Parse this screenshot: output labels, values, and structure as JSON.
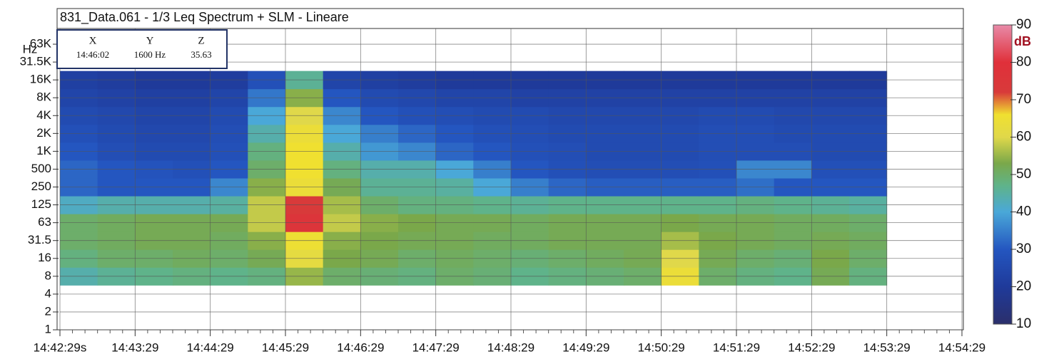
{
  "chart_data": {
    "type": "heatmap",
    "title": "831_Data.061 - 1/3 Leq Spectrum + SLM - Lineare",
    "y_label": "Hz",
    "x_categories": [
      "14:42:29s",
      "14:43:29",
      "14:44:29",
      "14:45:29",
      "14:46:29",
      "14:47:29",
      "14:48:29",
      "14:49:29",
      "14:50:29",
      "14:51:29",
      "14:52:29",
      "14:53:29",
      "14:54:29"
    ],
    "y_categories": [
      "1",
      "2",
      "4",
      "8",
      "16",
      "31.5",
      "63",
      "125",
      "250",
      "500",
      "1K",
      "2K",
      "4K",
      "8K",
      "16K",
      "31.5K",
      "63K"
    ],
    "z": [
      [
        null,
        null,
        null,
        null,
        null,
        null,
        null,
        null,
        null,
        null,
        null,
        null,
        null,
        null,
        null,
        null,
        null,
        null,
        null,
        null,
        null,
        null,
        null,
        null
      ],
      [
        null,
        null,
        null,
        null,
        null,
        null,
        null,
        null,
        null,
        null,
        null,
        null,
        null,
        null,
        null,
        null,
        null,
        null,
        null,
        null,
        null,
        null,
        null,
        null
      ],
      [
        null,
        null,
        null,
        null,
        null,
        null,
        null,
        null,
        null,
        null,
        null,
        null,
        null,
        null,
        null,
        null,
        null,
        null,
        null,
        null,
        null,
        null,
        null,
        null
      ],
      [
        44,
        46,
        47,
        48,
        47,
        48,
        55,
        50,
        49,
        48,
        50,
        49,
        47,
        48,
        49,
        50,
        64,
        50,
        48,
        47,
        52,
        48,
        null,
        null
      ],
      [
        48,
        50,
        50,
        51,
        50,
        52,
        62,
        53,
        52,
        50,
        51,
        50,
        49,
        50,
        51,
        52,
        60,
        52,
        50,
        49,
        53,
        50,
        null,
        null
      ],
      [
        50,
        51,
        52,
        52,
        51,
        54,
        65,
        54,
        53,
        52,
        52,
        51,
        51,
        52,
        52,
        52,
        56,
        53,
        52,
        51,
        52,
        51,
        null,
        null
      ],
      [
        50,
        51,
        52,
        52,
        52,
        58,
        76,
        58,
        54,
        53,
        52,
        52,
        51,
        52,
        52,
        52,
        53,
        52,
        52,
        51,
        51,
        50,
        null,
        null
      ],
      [
        42,
        44,
        44,
        44,
        45,
        58,
        72,
        56,
        50,
        48,
        48,
        47,
        46,
        47,
        47,
        47,
        47,
        47,
        48,
        47,
        46,
        45,
        null,
        null
      ],
      [
        32,
        30,
        30,
        30,
        36,
        54,
        64,
        52,
        46,
        46,
        45,
        40,
        35,
        32,
        31,
        31,
        31,
        31,
        33,
        30,
        30,
        30,
        null,
        null
      ],
      [
        32,
        30,
        29,
        28,
        30,
        50,
        66,
        48,
        44,
        44,
        40,
        35,
        30,
        28,
        27,
        27,
        27,
        28,
        36,
        36,
        28,
        28,
        null,
        null
      ],
      [
        30,
        27,
        26,
        26,
        28,
        48,
        66,
        44,
        38,
        36,
        32,
        30,
        28,
        27,
        26,
        26,
        26,
        27,
        27,
        27,
        26,
        26,
        null,
        null
      ],
      [
        28,
        26,
        25,
        25,
        27,
        44,
        64,
        40,
        35,
        32,
        30,
        28,
        27,
        26,
        26,
        26,
        26,
        27,
        27,
        26,
        26,
        26,
        null,
        null
      ],
      [
        26,
        25,
        24,
        24,
        26,
        40,
        60,
        36,
        30,
        28,
        27,
        26,
        26,
        25,
        25,
        25,
        25,
        26,
        26,
        25,
        25,
        25,
        null,
        null
      ],
      [
        24,
        23,
        22,
        22,
        24,
        34,
        54,
        30,
        26,
        25,
        24,
        24,
        23,
        23,
        23,
        23,
        23,
        23,
        23,
        23,
        23,
        23,
        null,
        null
      ],
      [
        22,
        21,
        20,
        20,
        21,
        28,
        46,
        24,
        22,
        21,
        20,
        20,
        20,
        20,
        20,
        20,
        20,
        20,
        20,
        20,
        20,
        20,
        null,
        null
      ],
      [
        null,
        null,
        null,
        null,
        null,
        null,
        null,
        null,
        null,
        null,
        null,
        null,
        null,
        null,
        null,
        null,
        null,
        null,
        null,
        null,
        null,
        null,
        null,
        null
      ],
      [
        null,
        null,
        null,
        null,
        null,
        null,
        null,
        null,
        null,
        null,
        null,
        null,
        null,
        null,
        null,
        null,
        null,
        null,
        null,
        null,
        null,
        null,
        null,
        null
      ]
    ],
    "zlim": [
      10,
      90
    ],
    "zticks": [
      10,
      20,
      30,
      40,
      50,
      60,
      70,
      80,
      90
    ],
    "z_label": "dB",
    "colorscale": [
      [
        10,
        "#2b2f6b"
      ],
      [
        20,
        "#1f3a9a"
      ],
      [
        30,
        "#2456c0"
      ],
      [
        40,
        "#4aa8d8"
      ],
      [
        47,
        "#5fb38a"
      ],
      [
        53,
        "#7aa84a"
      ],
      [
        60,
        "#e0d84a"
      ],
      [
        66,
        "#f0e030"
      ],
      [
        72,
        "#d83a3a"
      ],
      [
        80,
        "#e0303a"
      ],
      [
        90,
        "#e88aa8"
      ]
    ],
    "grid": true,
    "cursor": {
      "headers": [
        "X",
        "Y",
        "Z"
      ],
      "values": [
        "14:46:02",
        "1600 Hz",
        "35.63"
      ]
    }
  }
}
